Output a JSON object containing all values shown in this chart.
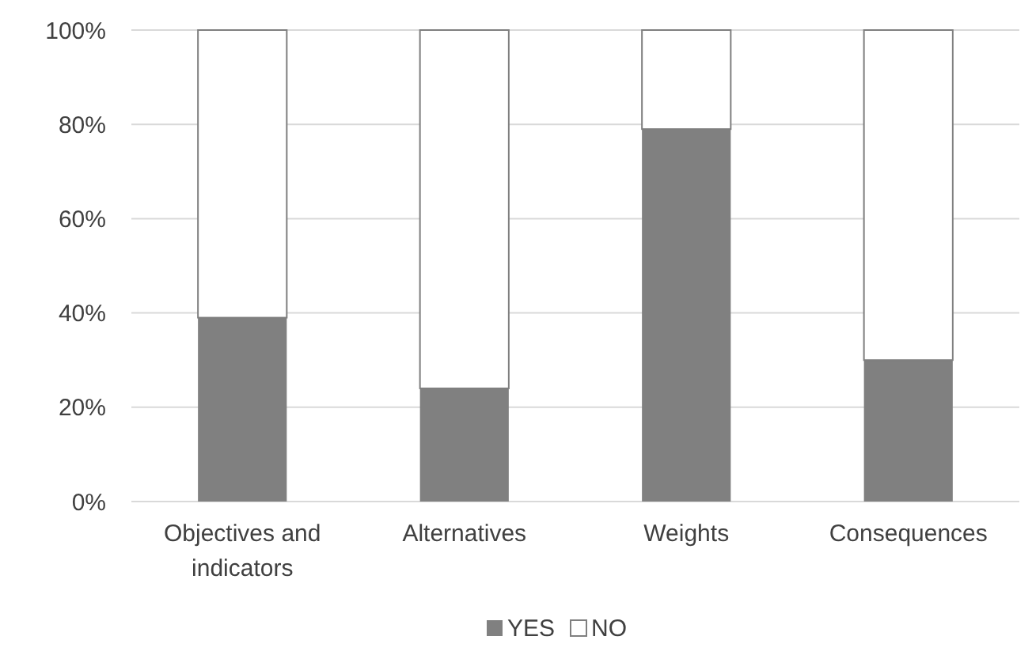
{
  "chart_data": {
    "type": "bar",
    "stacked": true,
    "categories": [
      "Objectives and indicators",
      "Alternatives",
      "Weights",
      "Consequences"
    ],
    "series": [
      {
        "name": "YES",
        "color": "#808080",
        "values": [
          39,
          24,
          79,
          30
        ]
      },
      {
        "name": "NO",
        "color": "#ffffff",
        "values": [
          61,
          76,
          21,
          70
        ]
      }
    ],
    "ylim": [
      0,
      100
    ],
    "yticks": [
      {
        "value": 0,
        "label": "0%"
      },
      {
        "value": 20,
        "label": "20%"
      },
      {
        "value": 40,
        "label": "40%"
      },
      {
        "value": 60,
        "label": "60%"
      },
      {
        "value": 80,
        "label": "80%"
      },
      {
        "value": 100,
        "label": "100%"
      }
    ],
    "grid": "y",
    "legend": "bottom"
  }
}
